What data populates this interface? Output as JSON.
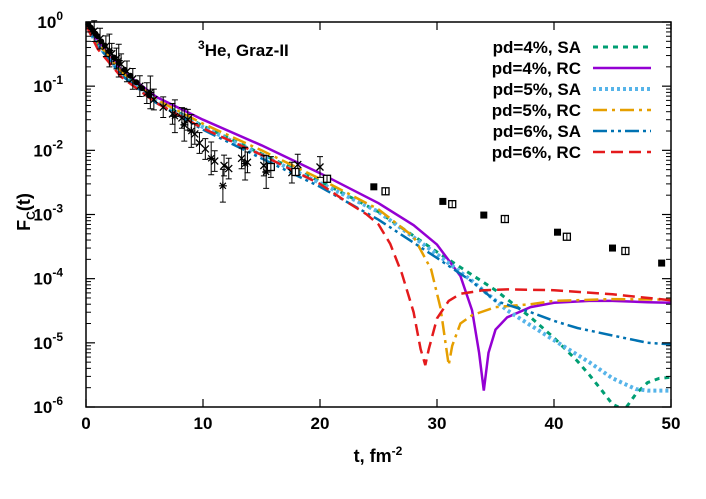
{
  "chart_data": {
    "type": "line",
    "annotation": {
      "sup": "3",
      "text": "He, Graz-II"
    },
    "xlabel": {
      "text": "t, fm",
      "sup": "-2"
    },
    "ylabel": {
      "text": "F",
      "sub": "C",
      "tail": "(t)"
    },
    "xlim": [
      0,
      50
    ],
    "ylim_exp": [
      -6,
      0
    ],
    "y_scale": "log",
    "legend_position": "top-right",
    "x_ticks": [
      {
        "value": 0,
        "label": "0"
      },
      {
        "value": 10,
        "label": "10"
      },
      {
        "value": 20,
        "label": "20"
      },
      {
        "value": 30,
        "label": "30"
      },
      {
        "value": 40,
        "label": "40"
      },
      {
        "value": 50,
        "label": "50"
      }
    ],
    "y_ticks": [
      {
        "exp": 0,
        "base": "10",
        "sup": "0"
      },
      {
        "exp": -1,
        "base": "10",
        "sup": "-1"
      },
      {
        "exp": -2,
        "base": "10",
        "sup": "-2"
      },
      {
        "exp": -3,
        "base": "10",
        "sup": "-3"
      },
      {
        "exp": -4,
        "base": "10",
        "sup": "-4"
      },
      {
        "exp": -5,
        "base": "10",
        "sup": "-5"
      },
      {
        "exp": -6,
        "base": "10",
        "sup": "-6"
      }
    ],
    "series": [
      {
        "name": "pd=4%, SA",
        "color": "#009e73",
        "dash": "5,5",
        "width": 3,
        "points": [
          [
            0,
            0.9
          ],
          [
            1,
            0.45
          ],
          [
            3,
            0.16
          ],
          [
            6,
            0.06
          ],
          [
            10,
            0.024
          ],
          [
            15,
            0.0088
          ],
          [
            20,
            0.0033
          ],
          [
            25,
            0.0011
          ],
          [
            30,
            0.00026
          ],
          [
            35,
            6.6e-05
          ],
          [
            38,
            2.5e-05
          ],
          [
            40,
            1.2e-05
          ],
          [
            42,
            5.2e-06
          ],
          [
            43,
            3.2e-06
          ],
          [
            44,
            1.9e-06
          ],
          [
            45,
            1.1e-06
          ],
          [
            45.5,
            1e-06
          ]
        ]
      },
      {
        "name": "",
        "color": "#009e73",
        "dash": "5,5",
        "width": 3,
        "points": [
          [
            46.2,
            1e-06
          ],
          [
            47,
            1.6e-06
          ],
          [
            48,
            2.4e-06
          ],
          [
            49,
            2.8e-06
          ],
          [
            50,
            2.9e-06
          ]
        ]
      },
      {
        "name": "pd=4%, RC",
        "color": "#9400d3",
        "dash": "",
        "width": 2.5,
        "points": [
          [
            0,
            0.9
          ],
          [
            1,
            0.5
          ],
          [
            3,
            0.18
          ],
          [
            6,
            0.068
          ],
          [
            10,
            0.03
          ],
          [
            15,
            0.012
          ],
          [
            20,
            0.0044
          ],
          [
            25,
            0.0015
          ],
          [
            28,
            0.00068
          ],
          [
            30,
            0.00034
          ],
          [
            32,
            0.00011
          ],
          [
            33,
            3.2e-05
          ],
          [
            33.6,
            7e-06
          ],
          [
            34,
            1.8e-06
          ],
          [
            34.4,
            7e-06
          ],
          [
            35,
            1.6e-05
          ],
          [
            36,
            2.5e-05
          ],
          [
            38,
            3.6e-05
          ],
          [
            40,
            4.2e-05
          ],
          [
            43,
            4.5e-05
          ],
          [
            45,
            4.5e-05
          ],
          [
            48,
            4.3e-05
          ],
          [
            50,
            4.2e-05
          ]
        ]
      },
      {
        "name": "pd=5%, SA",
        "color": "#56b4e9",
        "dash": "3,3",
        "width": 4,
        "points": [
          [
            0,
            0.9
          ],
          [
            1,
            0.44
          ],
          [
            3,
            0.16
          ],
          [
            6,
            0.058
          ],
          [
            10,
            0.023
          ],
          [
            15,
            0.0084
          ],
          [
            20,
            0.0031
          ],
          [
            25,
            0.0011
          ],
          [
            30,
            0.00024
          ],
          [
            33,
            9.2e-05
          ],
          [
            36,
            3.2e-05
          ],
          [
            40,
            1.1e-05
          ],
          [
            43,
            5e-06
          ],
          [
            45,
            2.8e-06
          ],
          [
            47,
            1.9e-06
          ],
          [
            48,
            1.8e-06
          ],
          [
            50,
            1.8e-06
          ]
        ]
      },
      {
        "name": "pd=5%, RC",
        "color": "#e69f00",
        "dash": "14,5,3,5",
        "width": 2.5,
        "points": [
          [
            0,
            0.9
          ],
          [
            1,
            0.47
          ],
          [
            3,
            0.17
          ],
          [
            6,
            0.062
          ],
          [
            10,
            0.026
          ],
          [
            15,
            0.01
          ],
          [
            20,
            0.0036
          ],
          [
            25,
            0.0012
          ],
          [
            28,
            0.00045
          ],
          [
            29.5,
            0.00014
          ],
          [
            30.3,
            3.5e-05
          ],
          [
            30.8,
            8e-06
          ],
          [
            31,
            4.5e-06
          ],
          [
            31.3,
            9e-06
          ],
          [
            32,
            2e-05
          ],
          [
            33,
            2.7e-05
          ],
          [
            35,
            3.6e-05
          ],
          [
            38,
            4e-05
          ],
          [
            40,
            4.5e-05
          ],
          [
            45,
            4.8e-05
          ],
          [
            50,
            4.7e-05
          ]
        ]
      },
      {
        "name": "pd=6%, SA",
        "color": "#0072b2",
        "dash": "14,4,3,4,3,4",
        "width": 2.5,
        "points": [
          [
            0,
            0.9
          ],
          [
            1,
            0.43
          ],
          [
            3,
            0.15
          ],
          [
            6,
            0.055
          ],
          [
            10,
            0.021
          ],
          [
            15,
            0.0075
          ],
          [
            20,
            0.0027
          ],
          [
            25,
            0.00083
          ],
          [
            30,
            0.00021
          ],
          [
            33,
            9e-05
          ],
          [
            35,
            4.5e-05
          ],
          [
            38,
            3e-05
          ],
          [
            40,
            2.2e-05
          ],
          [
            42,
            1.7e-05
          ],
          [
            45,
            1.3e-05
          ],
          [
            48,
            1e-05
          ],
          [
            50,
            9.5e-06
          ]
        ]
      },
      {
        "name": "pd=6%, RC",
        "color": "#e41a1c",
        "dash": "12,6",
        "width": 2.5,
        "points": [
          [
            0,
            0.9
          ],
          [
            1,
            0.38
          ],
          [
            3,
            0.14
          ],
          [
            6,
            0.055
          ],
          [
            10,
            0.022
          ],
          [
            15,
            0.0085
          ],
          [
            20,
            0.003
          ],
          [
            22,
            0.0017
          ],
          [
            24,
            0.001
          ],
          [
            25,
            0.0007
          ],
          [
            26,
            0.00035
          ],
          [
            27,
            0.00012
          ],
          [
            28,
            3e-05
          ],
          [
            28.6,
            8e-06
          ],
          [
            29,
            4.5e-06
          ],
          [
            29.3,
            8e-06
          ],
          [
            30,
            2.4e-05
          ],
          [
            31,
            4.5e-05
          ],
          [
            32,
            5.8e-05
          ],
          [
            34,
            6.6e-05
          ],
          [
            36,
            6.8e-05
          ],
          [
            40,
            6.6e-05
          ],
          [
            45,
            5.7e-05
          ],
          [
            50,
            4.6e-05
          ]
        ]
      }
    ],
    "data_points": {
      "filled_circles": [
        [
          0.2,
          0.92
        ],
        [
          0.4,
          0.82
        ],
        [
          0.6,
          0.74
        ],
        [
          0.8,
          0.66
        ],
        [
          1.0,
          0.6
        ],
        [
          1.3,
          0.5
        ],
        [
          1.6,
          0.43
        ],
        [
          2.0,
          0.35
        ],
        [
          2.4,
          0.28
        ],
        [
          2.8,
          0.23
        ],
        [
          3.3,
          0.18
        ],
        [
          3.8,
          0.145
        ],
        [
          4.3,
          0.115
        ],
        [
          4.8,
          0.093
        ],
        [
          5.4,
          0.072
        ]
      ],
      "crosses": [
        [
          0.7,
          0.72
        ],
        [
          1.2,
          0.55
        ],
        [
          1.7,
          0.42
        ],
        [
          2.2,
          0.32
        ],
        [
          2.6,
          0.27
        ],
        [
          3.0,
          0.22
        ],
        [
          3.5,
          0.17
        ],
        [
          4.0,
          0.13
        ],
        [
          4.6,
          0.1
        ],
        [
          5.2,
          0.078
        ],
        [
          5.8,
          0.062
        ],
        [
          6.6,
          0.047
        ],
        [
          7.4,
          0.037
        ],
        [
          8.2,
          0.032
        ],
        [
          8.7,
          0.03
        ],
        [
          9.3,
          0.018
        ],
        [
          9.7,
          0.013
        ],
        [
          10.2,
          0.0105
        ],
        [
          11.0,
          0.0068
        ],
        [
          11.8,
          0.0058
        ],
        [
          12.2,
          0.0052
        ],
        [
          13.3,
          0.0075
        ],
        [
          13.8,
          0.0065
        ],
        [
          15.2,
          0.0058
        ],
        [
          15.8,
          0.0055
        ],
        [
          17.6,
          0.0045
        ],
        [
          18.1,
          0.006
        ],
        [
          20.0,
          0.0055
        ]
      ],
      "asterisks": [
        [
          2.0,
          0.36
        ],
        [
          2.8,
          0.25
        ],
        [
          5.5,
          0.08
        ],
        [
          7.6,
          0.034
        ],
        [
          8.4,
          0.025
        ],
        [
          9.0,
          0.02
        ],
        [
          10.7,
          0.0075
        ],
        [
          11.7,
          0.0028
        ],
        [
          13.6,
          0.0062
        ],
        [
          15.4,
          0.0046
        ]
      ],
      "filled_squares": [
        [
          24.6,
          0.0027
        ],
        [
          30.5,
          0.0016
        ],
        [
          34.0,
          0.00098
        ],
        [
          40.3,
          0.00053
        ],
        [
          45.0,
          0.0003
        ],
        [
          49.2,
          0.000175
        ]
      ],
      "open_squares": [
        [
          15.8,
          0.0055
        ],
        [
          17.9,
          0.0046
        ],
        [
          20.6,
          0.0036
        ],
        [
          25.6,
          0.0023
        ],
        [
          31.3,
          0.00145
        ],
        [
          35.8,
          0.00085
        ],
        [
          41.1,
          0.00045
        ],
        [
          46.1,
          0.00027
        ]
      ]
    }
  }
}
